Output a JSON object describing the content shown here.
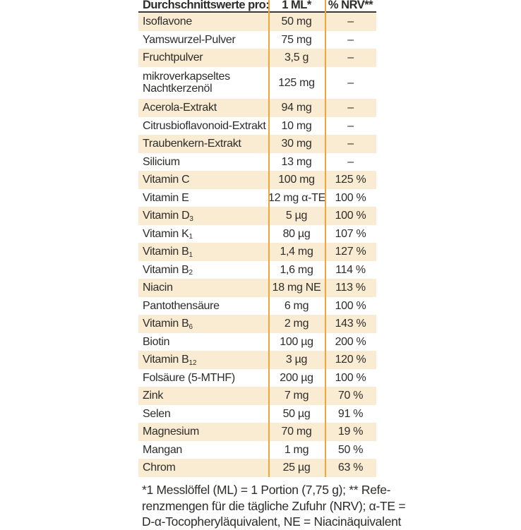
{
  "colors": {
    "row_shade": "#faecd2",
    "separator": "#eda63e",
    "header_rule": "#3a3835",
    "text": "#2d2c2a"
  },
  "table": {
    "header": {
      "label": "Durchschnittswerte pro:",
      "col_amount": "1 ML*",
      "col_nrv": "% NRV**"
    },
    "rows": [
      {
        "name": "Isoflavone",
        "amount": "50 mg",
        "nrv": "–"
      },
      {
        "name": "Yamswurzel-Pulver",
        "amount": "75 mg",
        "nrv": "–"
      },
      {
        "name": "Fruchtpulver",
        "amount": "3,5 g",
        "nrv": "–"
      },
      {
        "name": "mikroverkapseltes",
        "name_line2": "Nachtkerzenöl",
        "amount": "125 mg",
        "nrv": "–"
      },
      {
        "name": "Acerola-Extrakt",
        "amount": "94 mg",
        "nrv": "–"
      },
      {
        "name": "Citrusbioflavonoid-Extrakt",
        "amount": "10 mg",
        "nrv": "–"
      },
      {
        "name": "Traubenkern-Extrakt",
        "amount": "30 mg",
        "nrv": "–"
      },
      {
        "name": "Silicium",
        "amount": "13 mg",
        "nrv": "–"
      },
      {
        "name": "Vitamin C",
        "amount": "100 mg",
        "nrv": "125 %"
      },
      {
        "name": "Vitamin E",
        "amount": "12 mg α-TE",
        "nrv": "100 %"
      },
      {
        "name": "Vitamin D",
        "name_sub": "3",
        "amount": "5 µg",
        "nrv": "100 %"
      },
      {
        "name": "Vitamin K",
        "name_sub": "1",
        "amount": "80 µg",
        "nrv": "107 %"
      },
      {
        "name": "Vitamin B",
        "name_sub": "1",
        "amount": "1,4 mg",
        "nrv": "127 %"
      },
      {
        "name": "Vitamin B",
        "name_sub": "2",
        "amount": "1,6 mg",
        "nrv": "114 %"
      },
      {
        "name": "Niacin",
        "amount": "18 mg NE",
        "nrv": "113 %"
      },
      {
        "name": "Pantothensäure",
        "amount": "6 mg",
        "nrv": "100 %"
      },
      {
        "name": "Vitamin B",
        "name_sub": "6",
        "amount": "2 mg",
        "nrv": "143 %"
      },
      {
        "name": "Biotin",
        "amount": "100 µg",
        "nrv": "200 %"
      },
      {
        "name": "Vitamin B",
        "name_sub": "12",
        "amount": "3 µg",
        "nrv": "120 %"
      },
      {
        "name": "Folsäure (5-MTHF)",
        "amount": "200 µg",
        "nrv": "100 %"
      },
      {
        "name": "Zink",
        "amount": "7 mg",
        "nrv": "70 %"
      },
      {
        "name": "Selen",
        "amount": "50 µg",
        "nrv": "91 %"
      },
      {
        "name": "Magnesium",
        "amount": "70 mg",
        "nrv": "19 %"
      },
      {
        "name": "Mangan",
        "amount": "1 mg",
        "nrv": "50 %"
      },
      {
        "name": "Chrom",
        "amount": "25 µg",
        "nrv": "63 %"
      }
    ]
  },
  "footnote": {
    "lines": [
      "*1 Messlöffel (ML) = 1 Portion (7,75 g); ** Refe-",
      "renzmengen für die tägliche Zufuhr (NRV); α-TE =",
      "D-α-Tocopheryläquivalent, NE = Niacinäquivalent"
    ]
  }
}
